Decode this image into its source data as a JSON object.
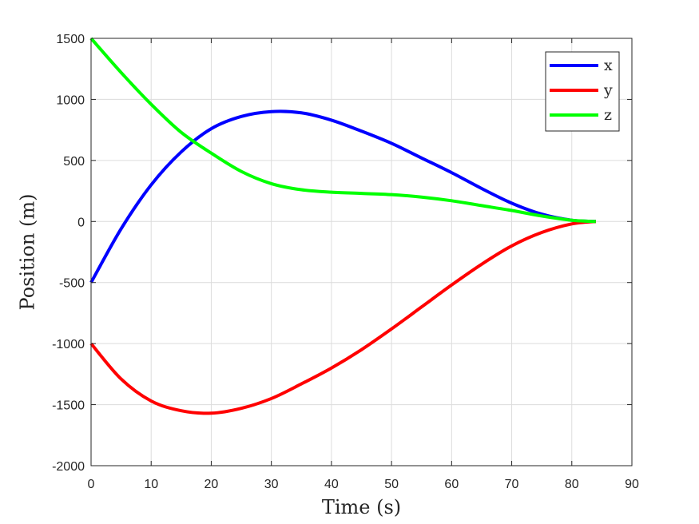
{
  "chart_data": {
    "type": "line",
    "xlabel": "Time (s)",
    "ylabel": "Position (m)",
    "xlim": [
      0,
      90
    ],
    "ylim": [
      -2000,
      1500
    ],
    "xticks": [
      0,
      10,
      20,
      30,
      40,
      50,
      60,
      70,
      80,
      90
    ],
    "yticks": [
      -2000,
      -1500,
      -1000,
      -500,
      0,
      500,
      1000,
      1500
    ],
    "grid": true,
    "legend_position": "top-right",
    "series": [
      {
        "name": "x",
        "color": "#0000ff",
        "x": [
          0,
          5,
          10,
          15,
          20,
          25,
          30,
          35,
          40,
          45,
          50,
          55,
          60,
          65,
          70,
          75,
          80,
          84
        ],
        "y": [
          -500,
          -60,
          300,
          570,
          760,
          860,
          900,
          890,
          830,
          740,
          640,
          520,
          400,
          270,
          150,
          60,
          10,
          0
        ]
      },
      {
        "name": "y",
        "color": "#ff0000",
        "x": [
          0,
          5,
          10,
          15,
          20,
          25,
          30,
          35,
          40,
          45,
          50,
          55,
          60,
          65,
          70,
          75,
          80,
          84
        ],
        "y": [
          -1000,
          -1290,
          -1470,
          -1550,
          -1570,
          -1530,
          -1450,
          -1330,
          -1200,
          -1050,
          -880,
          -700,
          -520,
          -350,
          -200,
          -90,
          -20,
          0
        ]
      },
      {
        "name": "z",
        "color": "#00ff00",
        "x": [
          0,
          5,
          10,
          15,
          20,
          25,
          30,
          35,
          40,
          45,
          50,
          55,
          60,
          65,
          70,
          75,
          80,
          84
        ],
        "y": [
          1500,
          1220,
          960,
          730,
          560,
          410,
          310,
          260,
          240,
          230,
          220,
          200,
          170,
          130,
          90,
          45,
          10,
          0
        ]
      }
    ]
  }
}
